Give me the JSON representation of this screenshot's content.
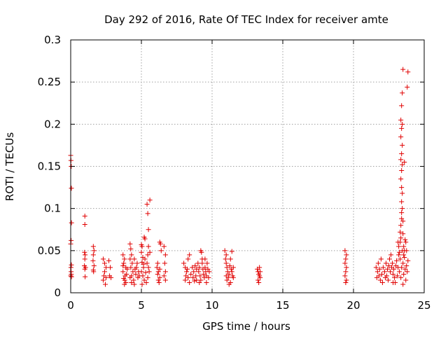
{
  "chart_data": {
    "type": "scatter",
    "title": "Day 292 of 2016, Rate Of TEC Index for receiver amte",
    "xlabel": "GPS time / hours",
    "ylabel": "ROTI / TECUs",
    "xlim": [
      0,
      25
    ],
    "ylim": [
      0,
      0.3
    ],
    "xticks": [
      0,
      5,
      10,
      15,
      20,
      25
    ],
    "xtick_labels": [
      "0",
      "5",
      "10",
      "15",
      "20",
      "25"
    ],
    "yticks": [
      0,
      0.05,
      0.1,
      0.15,
      0.2,
      0.25,
      0.3
    ],
    "ytick_labels": [
      "0",
      "0.05",
      "0.1",
      "0.15",
      "0.2",
      "0.25",
      "0.3"
    ],
    "grid": true,
    "marker": "+",
    "color": "#e00000",
    "grid_color": "#a0a0a0",
    "series": [
      {
        "name": "ROTI",
        "points": [
          [
            0.0,
            0.163
          ],
          [
            0.02,
            0.157
          ],
          [
            0.04,
            0.15
          ],
          [
            0.05,
            0.124
          ],
          [
            0.06,
            0.083
          ],
          [
            0.03,
            0.062
          ],
          [
            0.0,
            0.058
          ],
          [
            0.05,
            0.033
          ],
          [
            0.02,
            0.03
          ],
          [
            0.04,
            0.022
          ],
          [
            0.0,
            0.02
          ],
          [
            0.06,
            0.019
          ],
          [
            0.03,
            0.025
          ],
          [
            1.0,
            0.091
          ],
          [
            1.0,
            0.081
          ],
          [
            0.98,
            0.048
          ],
          [
            1.02,
            0.045
          ],
          [
            1.0,
            0.04
          ],
          [
            0.97,
            0.032
          ],
          [
            1.05,
            0.03
          ],
          [
            1.0,
            0.028
          ],
          [
            1.02,
            0.019
          ],
          [
            1.6,
            0.055
          ],
          [
            1.65,
            0.05
          ],
          [
            1.6,
            0.045
          ],
          [
            1.58,
            0.038
          ],
          [
            1.65,
            0.032
          ],
          [
            1.6,
            0.027
          ],
          [
            1.62,
            0.025
          ],
          [
            2.3,
            0.04
          ],
          [
            2.4,
            0.035
          ],
          [
            2.5,
            0.03
          ],
          [
            2.4,
            0.025
          ],
          [
            2.35,
            0.02
          ],
          [
            2.5,
            0.018
          ],
          [
            2.3,
            0.015
          ],
          [
            2.45,
            0.01
          ],
          [
            2.7,
            0.038
          ],
          [
            2.8,
            0.03
          ],
          [
            2.75,
            0.02
          ],
          [
            2.85,
            0.018
          ],
          [
            3.7,
            0.045
          ],
          [
            3.8,
            0.04
          ],
          [
            3.75,
            0.035
          ],
          [
            3.9,
            0.03
          ],
          [
            3.7,
            0.025
          ],
          [
            3.85,
            0.02
          ],
          [
            3.75,
            0.017
          ],
          [
            3.9,
            0.012
          ],
          [
            3.8,
            0.01
          ],
          [
            4.0,
            0.028
          ],
          [
            3.95,
            0.022
          ],
          [
            3.7,
            0.032
          ],
          [
            3.82,
            0.015
          ],
          [
            4.2,
            0.058
          ],
          [
            4.25,
            0.052
          ],
          [
            4.3,
            0.045
          ],
          [
            4.2,
            0.04
          ],
          [
            4.35,
            0.035
          ],
          [
            4.25,
            0.03
          ],
          [
            4.4,
            0.025
          ],
          [
            4.3,
            0.02
          ],
          [
            4.2,
            0.018
          ],
          [
            4.45,
            0.015
          ],
          [
            4.3,
            0.012
          ],
          [
            4.5,
            0.01
          ],
          [
            4.55,
            0.028
          ],
          [
            4.6,
            0.022
          ],
          [
            4.5,
            0.04
          ],
          [
            4.7,
            0.035
          ],
          [
            4.65,
            0.03
          ],
          [
            4.75,
            0.018
          ],
          [
            4.8,
            0.025
          ],
          [
            4.85,
            0.02
          ],
          [
            5.0,
            0.057
          ],
          [
            5.05,
            0.055
          ],
          [
            5.0,
            0.048
          ],
          [
            5.1,
            0.042
          ],
          [
            5.05,
            0.036
          ],
          [
            5.15,
            0.03
          ],
          [
            5.0,
            0.025
          ],
          [
            5.1,
            0.02
          ],
          [
            5.2,
            0.015
          ],
          [
            5.05,
            0.01
          ],
          [
            5.2,
            0.066
          ],
          [
            5.25,
            0.064
          ],
          [
            5.15,
            0.034
          ],
          [
            5.25,
            0.04
          ],
          [
            5.3,
            0.024
          ],
          [
            5.4,
            0.105
          ],
          [
            5.45,
            0.094
          ],
          [
            5.5,
            0.075
          ],
          [
            5.6,
            0.11
          ],
          [
            5.5,
            0.055
          ],
          [
            5.45,
            0.045
          ],
          [
            5.4,
            0.035
          ],
          [
            5.5,
            0.03
          ],
          [
            5.55,
            0.025
          ],
          [
            5.45,
            0.018
          ],
          [
            5.35,
            0.012
          ],
          [
            5.6,
            0.048
          ],
          [
            6.1,
            0.03
          ],
          [
            6.2,
            0.025
          ],
          [
            6.15,
            0.022
          ],
          [
            6.3,
            0.018
          ],
          [
            6.2,
            0.015
          ],
          [
            6.25,
            0.012
          ],
          [
            6.15,
            0.035
          ],
          [
            6.3,
            0.028
          ],
          [
            6.3,
            0.06
          ],
          [
            6.35,
            0.058
          ],
          [
            6.4,
            0.05
          ],
          [
            6.6,
            0.055
          ],
          [
            6.7,
            0.045
          ],
          [
            6.65,
            0.035
          ],
          [
            6.7,
            0.025
          ],
          [
            6.6,
            0.02
          ],
          [
            6.7,
            0.015
          ],
          [
            8.0,
            0.035
          ],
          [
            8.1,
            0.03
          ],
          [
            8.2,
            0.025
          ],
          [
            8.15,
            0.02
          ],
          [
            8.3,
            0.018
          ],
          [
            8.1,
            0.015
          ],
          [
            8.4,
            0.012
          ],
          [
            8.25,
            0.028
          ],
          [
            8.3,
            0.04
          ],
          [
            8.5,
            0.022
          ],
          [
            8.6,
            0.03
          ],
          [
            8.7,
            0.025
          ],
          [
            8.65,
            0.018
          ],
          [
            8.8,
            0.032
          ],
          [
            8.75,
            0.014
          ],
          [
            8.9,
            0.028
          ],
          [
            8.85,
            0.02
          ],
          [
            8.9,
            0.015
          ],
          [
            8.4,
            0.045
          ],
          [
            9.0,
            0.035
          ],
          [
            9.05,
            0.025
          ],
          [
            9.1,
            0.03
          ],
          [
            9.15,
            0.02
          ],
          [
            9.2,
            0.015
          ],
          [
            9.2,
            0.05
          ],
          [
            9.25,
            0.048
          ],
          [
            9.3,
            0.04
          ],
          [
            9.3,
            0.035
          ],
          [
            9.35,
            0.028
          ],
          [
            9.4,
            0.022
          ],
          [
            9.45,
            0.018
          ],
          [
            9.5,
            0.03
          ],
          [
            9.55,
            0.025
          ],
          [
            9.6,
            0.02
          ],
          [
            9.65,
            0.035
          ],
          [
            9.7,
            0.028
          ],
          [
            9.75,
            0.018
          ],
          [
            9.8,
            0.025
          ],
          [
            9.5,
            0.04
          ],
          [
            9.1,
            0.012
          ],
          [
            9.6,
            0.012
          ],
          [
            10.9,
            0.05
          ],
          [
            10.95,
            0.04
          ],
          [
            11.0,
            0.035
          ],
          [
            11.05,
            0.03
          ],
          [
            11.1,
            0.025
          ],
          [
            11.0,
            0.02
          ],
          [
            11.15,
            0.018
          ],
          [
            11.05,
            0.015
          ],
          [
            11.2,
            0.022
          ],
          [
            11.25,
            0.032
          ],
          [
            11.3,
            0.04
          ],
          [
            11.35,
            0.028
          ],
          [
            11.4,
            0.025
          ],
          [
            11.45,
            0.02
          ],
          [
            11.5,
            0.03
          ],
          [
            11.4,
            0.049
          ],
          [
            11.3,
            0.012
          ],
          [
            11.5,
            0.018
          ],
          [
            11.0,
            0.045
          ],
          [
            11.2,
            0.01
          ],
          [
            13.2,
            0.028
          ],
          [
            13.25,
            0.025
          ],
          [
            13.3,
            0.022
          ],
          [
            13.35,
            0.02
          ],
          [
            13.4,
            0.018
          ],
          [
            13.25,
            0.015
          ],
          [
            13.35,
            0.03
          ],
          [
            13.3,
            0.012
          ],
          [
            13.4,
            0.025
          ],
          [
            19.4,
            0.05
          ],
          [
            19.45,
            0.04
          ],
          [
            19.4,
            0.035
          ],
          [
            19.5,
            0.03
          ],
          [
            19.45,
            0.025
          ],
          [
            19.4,
            0.02
          ],
          [
            19.5,
            0.015
          ],
          [
            19.45,
            0.012
          ],
          [
            19.5,
            0.045
          ],
          [
            21.6,
            0.03
          ],
          [
            21.7,
            0.025
          ],
          [
            21.8,
            0.02
          ],
          [
            21.75,
            0.035
          ],
          [
            21.9,
            0.015
          ],
          [
            21.65,
            0.018
          ],
          [
            21.85,
            0.028
          ],
          [
            22.0,
            0.022
          ],
          [
            22.05,
            0.012
          ],
          [
            21.95,
            0.04
          ],
          [
            22.1,
            0.03
          ],
          [
            22.2,
            0.025
          ],
          [
            22.3,
            0.035
          ],
          [
            22.25,
            0.018
          ],
          [
            22.4,
            0.028
          ],
          [
            22.35,
            0.02
          ],
          [
            22.5,
            0.032
          ],
          [
            22.45,
            0.015
          ],
          [
            22.6,
            0.025
          ],
          [
            22.55,
            0.04
          ],
          [
            22.7,
            0.03
          ],
          [
            22.65,
            0.045
          ],
          [
            22.8,
            0.022
          ],
          [
            22.75,
            0.035
          ],
          [
            22.9,
            0.018
          ],
          [
            22.85,
            0.028
          ],
          [
            23.0,
            0.032
          ],
          [
            22.95,
            0.012
          ],
          [
            23.1,
            0.02
          ],
          [
            23.05,
            0.038
          ],
          [
            23.15,
            0.03
          ],
          [
            23.2,
            0.045
          ],
          [
            23.2,
            0.055
          ],
          [
            23.25,
            0.025
          ],
          [
            23.3,
            0.04
          ],
          [
            23.35,
            0.018
          ],
          [
            23.4,
            0.03
          ],
          [
            23.45,
            0.05
          ],
          [
            23.5,
            0.035
          ],
          [
            23.55,
            0.022
          ],
          [
            23.6,
            0.042
          ],
          [
            23.65,
            0.028
          ],
          [
            23.7,
            0.015
          ],
          [
            23.75,
            0.032
          ],
          [
            23.8,
            0.025
          ],
          [
            23.85,
            0.038
          ],
          [
            23.3,
            0.06
          ],
          [
            23.35,
            0.065
          ],
          [
            23.3,
            0.072
          ],
          [
            23.35,
            0.08
          ],
          [
            23.4,
            0.088
          ],
          [
            23.4,
            0.095
          ],
          [
            23.45,
            0.1
          ],
          [
            23.4,
            0.108
          ],
          [
            23.45,
            0.118
          ],
          [
            23.4,
            0.125
          ],
          [
            23.35,
            0.135
          ],
          [
            23.4,
            0.145
          ],
          [
            23.45,
            0.152
          ],
          [
            23.35,
            0.158
          ],
          [
            23.4,
            0.165
          ],
          [
            23.45,
            0.175
          ],
          [
            23.35,
            0.185
          ],
          [
            23.4,
            0.195
          ],
          [
            23.45,
            0.2
          ],
          [
            23.35,
            0.205
          ],
          [
            23.4,
            0.222
          ],
          [
            23.45,
            0.237
          ],
          [
            23.5,
            0.265
          ],
          [
            23.85,
            0.262
          ],
          [
            23.8,
            0.244
          ],
          [
            23.6,
            0.155
          ],
          [
            23.65,
            0.063
          ],
          [
            23.5,
            0.085
          ],
          [
            23.55,
            0.055
          ],
          [
            23.6,
            0.05
          ],
          [
            23.5,
            0.07
          ],
          [
            23.25,
            0.048
          ],
          [
            23.15,
            0.06
          ],
          [
            23.55,
            0.045
          ],
          [
            23.7,
            0.06
          ],
          [
            23.75,
            0.05
          ],
          [
            22.8,
            0.012
          ],
          [
            23.5,
            0.01
          ]
        ]
      }
    ]
  }
}
